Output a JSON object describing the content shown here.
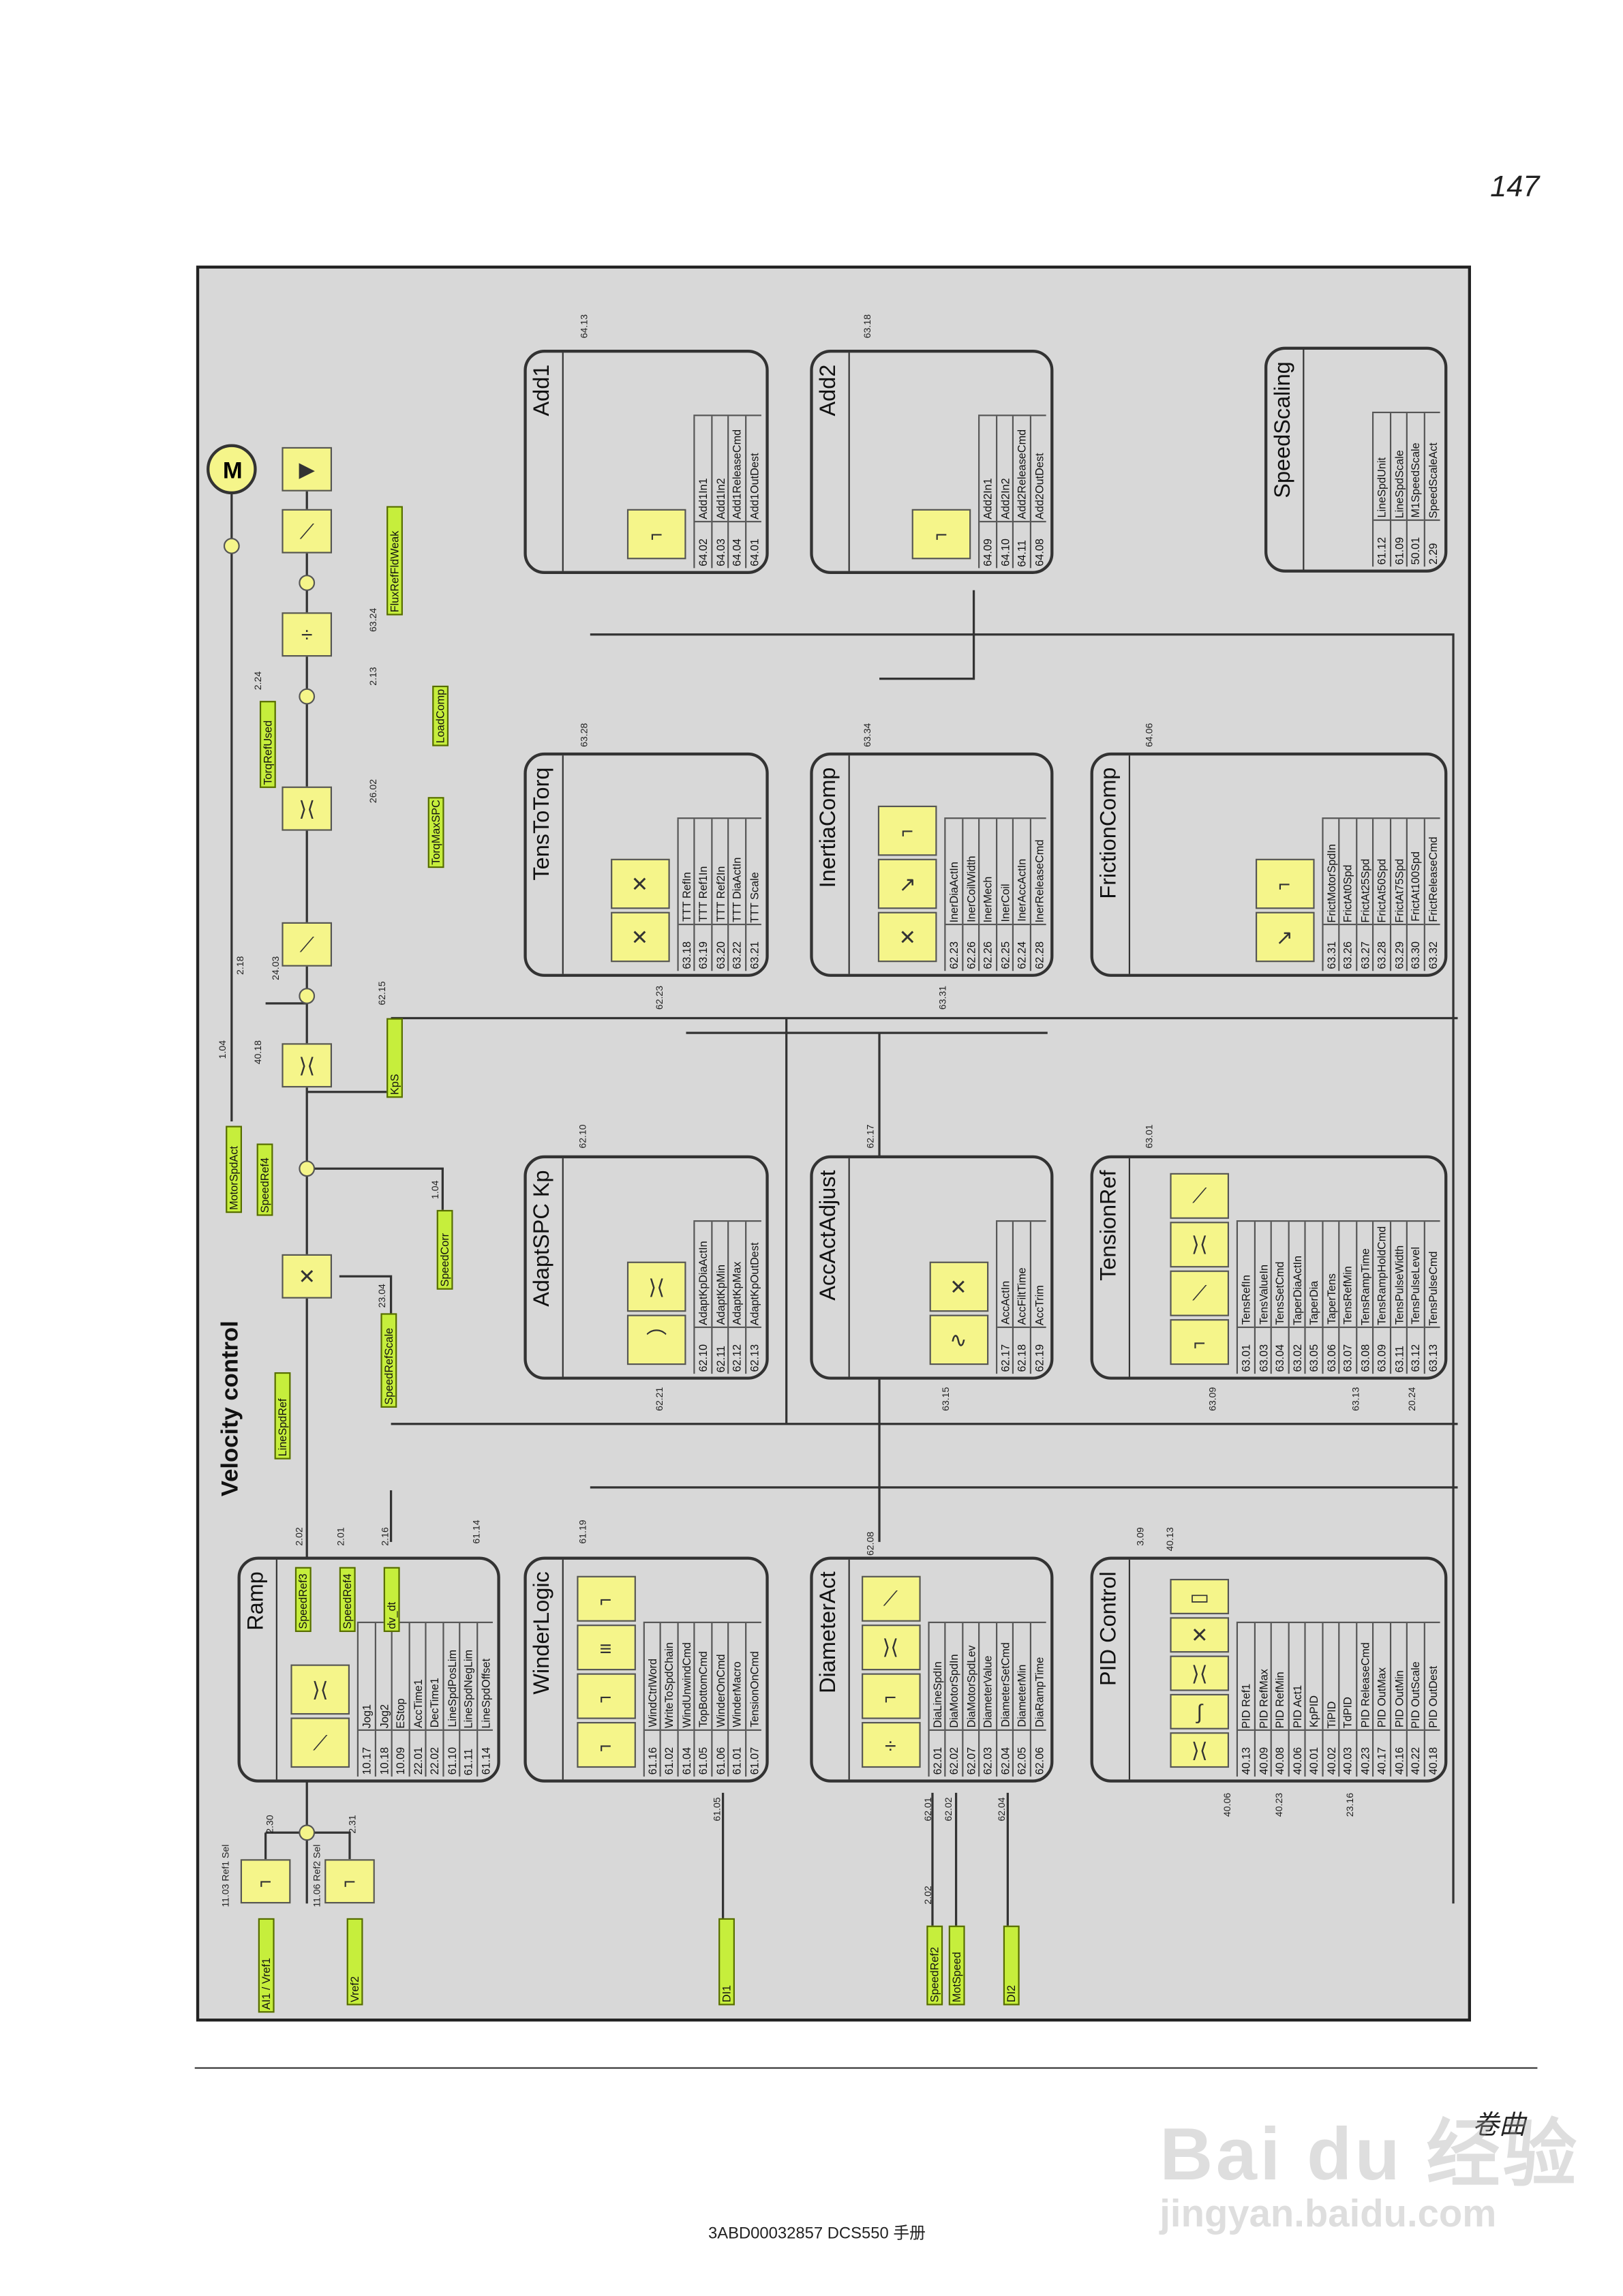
{
  "page": {
    "number": "147",
    "chapter": "卷曲",
    "doc_id": "3ABD00032857 DCS550 手册",
    "watermark": "Bai du 经验",
    "watermark_url": "jingyan.baidu.com"
  },
  "diagram": {
    "title": "Velocity control",
    "colors": {
      "background": "#d8d8d8",
      "function_box": "#f5f58a",
      "signal_tag": "#c6ee3c",
      "line": "#333333"
    },
    "blocks": [
      {
        "id": "ramp",
        "title": "Ramp",
        "boxes": [
          "ramp-icon",
          "limiter-icon"
        ],
        "params": [
          [
            "10.17",
            "Jog1"
          ],
          [
            "10.18",
            "Jog2"
          ],
          [
            "10.09",
            "EStop"
          ],
          [
            "22.01",
            "AccTime1"
          ],
          [
            "22.02",
            "DecTime1"
          ],
          [
            "61.10",
            "LineSpdPosLim"
          ],
          [
            "61.11",
            "LineSpdNegLim"
          ],
          [
            "61.14",
            "LineSpdOffset"
          ]
        ]
      },
      {
        "id": "winder-logic",
        "title": "WinderLogic",
        "boxes": [
          "switch-icon",
          "switch-icon",
          "logic-icon",
          "switch-icon"
        ],
        "params": [
          [
            "61.16",
            "WindCtrlWord"
          ],
          [
            "61.02",
            "WriteToSpdChain"
          ],
          [
            "61.04",
            "WindUnwindCmd"
          ],
          [
            "61.05",
            "TopBottomCmd"
          ],
          [
            "61.06",
            "WinderOnCmd"
          ],
          [
            "61.01",
            "WinderMacro"
          ],
          [
            "61.07",
            "TensionOnCmd"
          ]
        ]
      },
      {
        "id": "diameter-act",
        "title": "DiameterAct",
        "boxes": [
          "divide-icon",
          "switch-icon",
          "limiter-icon",
          "ramp-icon"
        ],
        "params": [
          [
            "62.01",
            "DiaLineSpdIn"
          ],
          [
            "62.02",
            "DiaMotorSpdIn"
          ],
          [
            "62.07",
            "DiaMotorSpdLev"
          ],
          [
            "62.03",
            "DiameterValue"
          ],
          [
            "62.04",
            "DiameterSetCmd"
          ],
          [
            "62.05",
            "DiameterMin"
          ],
          [
            "62.06",
            "DiaRampTime"
          ]
        ]
      },
      {
        "id": "pid-control",
        "title": "PID Control",
        "boxes": [
          "limiter-icon",
          "pid-icon",
          "limiter-icon",
          "multiply-icon",
          "pid-out-icon"
        ],
        "params": [
          [
            "40.13",
            "PID Ref1"
          ],
          [
            "40.09",
            "PID RefMax"
          ],
          [
            "40.08",
            "PID RefMin"
          ],
          [
            "40.06",
            "PID Act1"
          ],
          [
            "40.01",
            "KpPID"
          ],
          [
            "40.02",
            "TiPID"
          ],
          [
            "40.03",
            "TdPID"
          ],
          [
            "40.23",
            "PID ReleaseCmd"
          ],
          [
            "40.17",
            "PID OutMax"
          ],
          [
            "40.16",
            "PID OutMin"
          ],
          [
            "40.22",
            "PID OutScale"
          ],
          [
            "40.18",
            "PID OutDest"
          ]
        ]
      },
      {
        "id": "adapt-spc-kp",
        "title": "AdaptSPC Kp",
        "boxes": [
          "kp-curve-icon",
          "limiter-icon"
        ],
        "params": [
          [
            "62.10",
            "AdaptKpDiaActIn"
          ],
          [
            "62.11",
            "AdaptKpMin"
          ],
          [
            "62.12",
            "AdaptKpMax"
          ],
          [
            "62.13",
            "AdaptKpOutDest"
          ]
        ]
      },
      {
        "id": "acc-act-adjust",
        "title": "AccActAdjust",
        "boxes": [
          "filter-icon",
          "multiply-icon"
        ],
        "params": [
          [
            "62.17",
            "AccActIn"
          ],
          [
            "62.18",
            "AccFiltTime"
          ],
          [
            "62.19",
            "AccTrim"
          ]
        ]
      },
      {
        "id": "tension-ref",
        "title": "TensionRef",
        "boxes": [
          "switch-icon",
          "ramp-icon",
          "limiter-icon",
          "ramp-icon"
        ],
        "params": [
          [
            "63.01",
            "TensRefIn"
          ],
          [
            "63.03",
            "TensValueIn"
          ],
          [
            "63.04",
            "TensSetCmd"
          ],
          [
            "63.02",
            "TaperDiaActIn"
          ],
          [
            "63.05",
            "TaperDia"
          ],
          [
            "63.06",
            "TaperTens"
          ],
          [
            "63.07",
            "TensRefMin"
          ],
          [
            "63.08",
            "TensRampTime"
          ],
          [
            "63.09",
            "TensRampHoldCmd"
          ],
          [
            "63.11",
            "TensPulseWidth"
          ],
          [
            "63.12",
            "TensPulseLevel"
          ],
          [
            "63.13",
            "TensPulseCmd"
          ]
        ]
      },
      {
        "id": "tens-to-torq",
        "title": "TensToTorq",
        "boxes": [
          "multiply-icon",
          "multiply-icon"
        ],
        "params": [
          [
            "63.18",
            "TTT RefIn"
          ],
          [
            "63.19",
            "TTT Ref1In"
          ],
          [
            "63.20",
            "TTT Ref2In"
          ],
          [
            "63.22",
            "TTT DiaActIn"
          ],
          [
            "63.21",
            "TTT Scale"
          ]
        ]
      },
      {
        "id": "inertia-comp",
        "title": "InertiaComp",
        "boxes": [
          "multiply-icon",
          "curve-icon",
          "switch-icon"
        ],
        "params": [
          [
            "62.23",
            "InerDiaActIn"
          ],
          [
            "62.26",
            "InerCoilWidth"
          ],
          [
            "62.26",
            "InerMech"
          ],
          [
            "62.25",
            "InerCoil"
          ],
          [
            "62.24",
            "InerAccActIn"
          ],
          [
            "62.28",
            "InerReleaseCmd"
          ]
        ]
      },
      {
        "id": "friction-comp",
        "title": "FrictionComp",
        "boxes": [
          "friction-curve-icon",
          "switch-icon"
        ],
        "params": [
          [
            "63.31",
            "FrictMotorSpdIn"
          ],
          [
            "63.26",
            "FrictAt0Spd"
          ],
          [
            "63.27",
            "FrictAt25Spd"
          ],
          [
            "63.28",
            "FrictAt50Spd"
          ],
          [
            "63.29",
            "FrictAt75Spd"
          ],
          [
            "63.30",
            "FrictAt100Spd"
          ],
          [
            "63.32",
            "FrictReleaseCmd"
          ]
        ]
      },
      {
        "id": "add1",
        "title": "Add1",
        "boxes": [
          "switch-icon"
        ],
        "params": [
          [
            "64.02",
            "Add1In1"
          ],
          [
            "64.03",
            "Add1In2"
          ],
          [
            "64.04",
            "Add1ReleaseCmd"
          ],
          [
            "64.01",
            "Add1OutDest"
          ]
        ]
      },
      {
        "id": "add2",
        "title": "Add2",
        "boxes": [
          "switch-icon"
        ],
        "params": [
          [
            "64.09",
            "Add2In1"
          ],
          [
            "64.10",
            "Add2In2"
          ],
          [
            "64.11",
            "Add2ReleaseCmd"
          ],
          [
            "64.08",
            "Add2OutDest"
          ]
        ]
      },
      {
        "id": "speed-scaling",
        "title": "SpeedScaling",
        "boxes": [],
        "params": [
          [
            "61.12",
            "LineSpdUnit"
          ],
          [
            "61.09",
            "LineSpdScale"
          ],
          [
            "50.01",
            "M1SpeedScale"
          ],
          [
            "2.29",
            "SpeedScaleAct"
          ]
        ]
      }
    ],
    "tags": [
      "AI1 / Vref1",
      "Vref2",
      "DI1",
      "SpeedRef2",
      "MotSpeed",
      "DI2",
      "LineSpdRef",
      "SpeedRefScale",
      "SpeedCorr",
      "MotorSpdAct",
      "SpeedRef4",
      "KpS",
      "TorqMaxSPC",
      "LoadComp",
      "TorqRefUsed",
      "FluxRefFldWeak",
      "SpeedRef3",
      "SpeedRef4",
      "dv_dt"
    ],
    "labels": [
      "11.03  Ref1 Sel",
      "11.06  Ref2 Sel",
      "2.30",
      "2.31",
      "2.02",
      "2.01",
      "2.16",
      "61.14",
      "61.19",
      "61.05",
      "62.08",
      "62.01",
      "62.02",
      "62.04",
      "2.02",
      "1.04",
      "40.18",
      "3.09",
      "40.13",
      "40.06",
      "40.23",
      "23.16",
      "23.04",
      "1.04",
      "2.18",
      "24.03",
      "62.15",
      "62.10",
      "62.21",
      "62.17",
      "63.15",
      "63.01",
      "63.09",
      "63.13",
      "20.24",
      "26.02",
      "2.13",
      "2.24",
      "63.24",
      "63.28",
      "63.34",
      "64.06",
      "64.13",
      "63.18",
      "62.23",
      "63.31"
    ],
    "motor_label": "M"
  }
}
